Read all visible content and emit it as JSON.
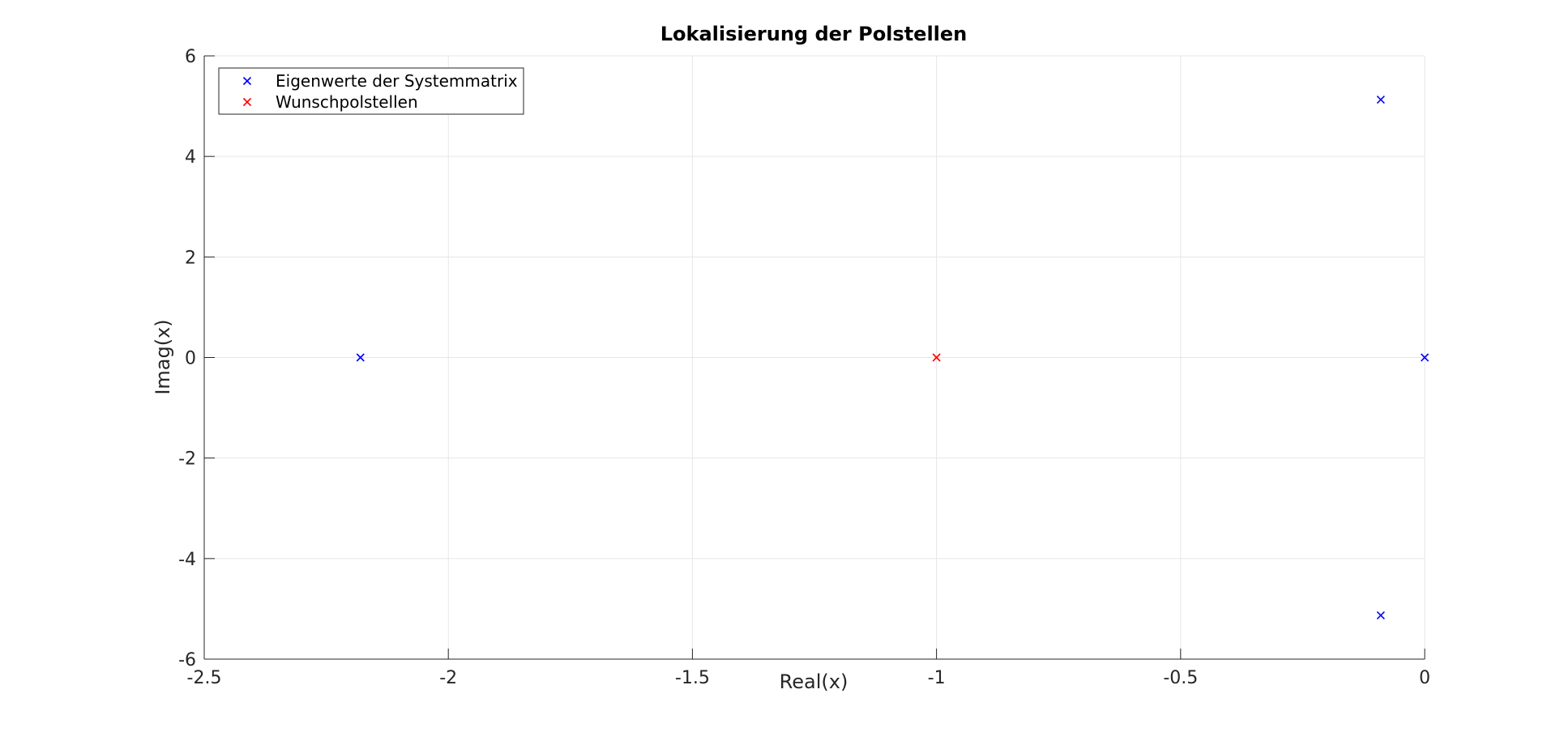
{
  "chart_data": {
    "type": "scatter",
    "title": "Lokalisierung der Polstellen",
    "xlabel": "Real(x)",
    "ylabel": "Imag(x)",
    "xlim": [
      -2.5,
      0
    ],
    "ylim": [
      -6,
      6
    ],
    "xticks": [
      -2.5,
      -2,
      -1.5,
      -1,
      -0.5,
      0
    ],
    "xtick_labels": [
      "-2.5",
      "-2",
      "-1.5",
      "-1",
      "-0.5",
      "0"
    ],
    "yticks": [
      -6,
      -4,
      -2,
      0,
      2,
      4,
      6
    ],
    "ytick_labels": [
      "-6",
      "-4",
      "-2",
      "0",
      "2",
      "4",
      "6"
    ],
    "grid": true,
    "legend_position": "top-left",
    "marker": "x",
    "series": [
      {
        "name": "Eigenwerte der Systemmatrix",
        "color": "#0000ff",
        "points": [
          {
            "x": -2.18,
            "y": 0
          },
          {
            "x": -0.09,
            "y": 5.13
          },
          {
            "x": -0.09,
            "y": -5.13
          },
          {
            "x": 0,
            "y": 0
          }
        ]
      },
      {
        "name": "Wunschpolstellen",
        "color": "#ff0000",
        "points": [
          {
            "x": -1,
            "y": 0
          }
        ]
      }
    ]
  }
}
